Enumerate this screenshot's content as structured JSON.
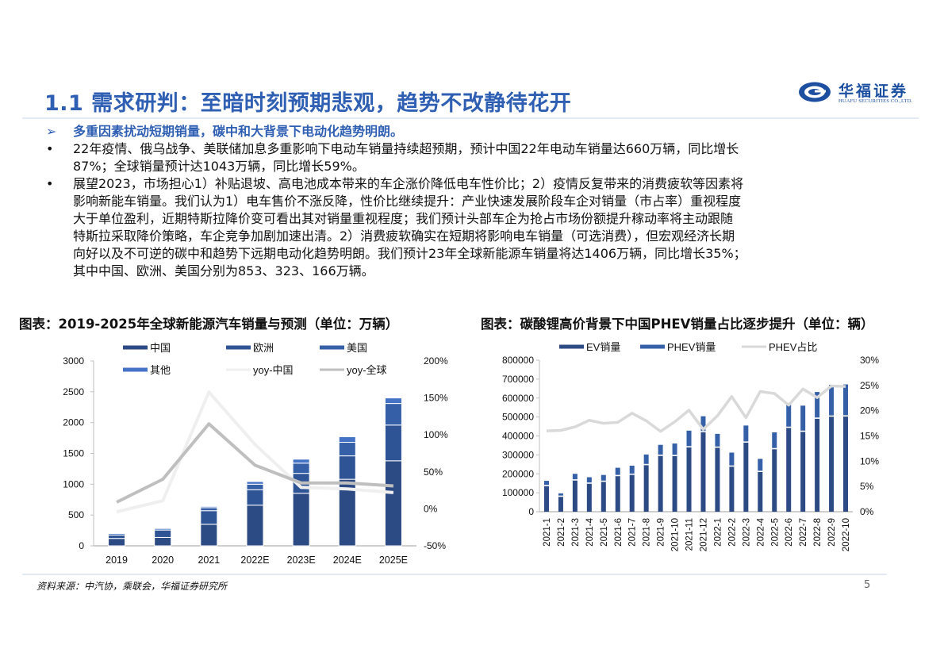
{
  "header": {
    "title": "1.1 需求研判：至暗时刻预期悲观，趋势不改静待花开",
    "logo": {
      "cn": "华福证券",
      "en": "HUAFU SECURITIES CO.,LTD.",
      "icon": "huafu-logo-icon"
    }
  },
  "summary": {
    "lead_marker": "➢",
    "lead": "多重因素扰动短期销量，碳中和大背景下电动化趋势明朗。",
    "bullet_marker": "•",
    "points": [
      {
        "lines": [
          "22年疫情、俄乌战争、美联储加息多重影响下电动车销量持续超预期，预计中国22年电动车销量达660万辆，同比增长",
          "87%；全球销量预计达1043万辆，同比增长59%。"
        ]
      },
      {
        "lines": [
          "展望2023，市场担心1）补贴退坡、高电池成本带来的车企涨价降低电车性价比；2）疫情反复带来的消费疲软等因素将",
          "影响新能车销量。我们认为1）电车售价不涨反降，性价比继续提升：产业快速发展阶段车企对销量（市占率）重视程度",
          "大于单位盈利，近期特斯拉降价变可看出其对销量重视程度；我们预计头部车企为抢占市场份额提升稼动率将主动跟随",
          "特斯拉采取降价策略，车企竞争加剧加速出清。2）消费疲软确实在短期将影响电车销量（可选消费），但宏观经济长期",
          "向好以及不可逆的碳中和趋势下远期电动化趋势明朗。我们预计23年全球新能源车销量将达1406万辆，同比增长35%；",
          "其中中国、欧洲、美国分别为853、323、166万辆。"
        ]
      }
    ]
  },
  "charts": {
    "left": {
      "title": "图表：2019-2025年全球新能源汽车销量与预测（单位：万辆）",
      "legend": [
        "中国",
        "欧洲",
        "美国",
        "其他",
        "yoy-中国",
        "yoy-全球"
      ],
      "y_ticks": [
        "3000",
        "2500",
        "2000",
        "1500",
        "1000",
        "500",
        "0"
      ],
      "y2_ticks": [
        "200%",
        "150%",
        "100%",
        "50%",
        "0%",
        "-50%"
      ],
      "x_labels": [
        "2019",
        "2020",
        "2021",
        "2022E",
        "2023E",
        "2024E",
        "2025E"
      ]
    },
    "right": {
      "title": "图表：碳酸锂高价背景下中国PHEV销量占比逐步提升（单位：辆）",
      "legend": [
        "EV销量",
        "PHEV销量",
        "PHEV占比"
      ],
      "y_ticks": [
        "800000",
        "700000",
        "600000",
        "500000",
        "400000",
        "300000",
        "200000",
        "100000",
        "0"
      ],
      "y2_ticks": [
        "30%",
        "25%",
        "20%",
        "15%",
        "10%",
        "5%",
        "0%"
      ],
      "x_labels": [
        "2021-1",
        "2021-2",
        "2021-3",
        "2021-4",
        "2021-5",
        "2021-6",
        "2021-7",
        "2021-8",
        "2021-9",
        "2021-10",
        "2021-11",
        "2021-12",
        "2022-1",
        "2022-2",
        "2022-3",
        "2022-4",
        "2022-5",
        "2022-6",
        "2022-7",
        "2022-8",
        "2022-9",
        "2022-10"
      ]
    }
  },
  "colors": {
    "title_blue": "#2f5fb3",
    "china": "#2c4a84",
    "europe": "#2f5496",
    "usa": "#3560a8",
    "other": "#4472c4",
    "ev": "#2c4a84",
    "phev": "#3560a8",
    "yoy_china": "#efefef",
    "yoy_global": "#bfbfbf",
    "phev_share": "#d9d9d9"
  },
  "chart_data": [
    {
      "type": "bar",
      "stacked": true,
      "title": "图表：2019-2025年全球新能源汽车销量与预测（单位：万辆）",
      "categories": [
        "2019",
        "2020",
        "2021",
        "2022E",
        "2023E",
        "2024E",
        "2025E"
      ],
      "series": [
        {
          "name": "中国",
          "type": "bar",
          "axis": "left",
          "values": [
            120,
            136,
            350,
            660,
            853,
            1080,
            1380
          ]
        },
        {
          "name": "欧洲",
          "type": "bar",
          "axis": "left",
          "values": [
            56,
            120,
            220,
            250,
            323,
            380,
            580
          ]
        },
        {
          "name": "美国",
          "type": "bar",
          "axis": "left",
          "values": [
            0,
            0,
            49,
            90,
            166,
            220,
            350
          ]
        },
        {
          "name": "其他",
          "type": "bar",
          "axis": "left",
          "values": [
            24,
            25,
            20,
            43,
            64,
            90,
            90
          ]
        },
        {
          "name": "yoy-中国",
          "type": "line",
          "axis": "right",
          "values": [
            -4,
            11,
            158,
            87,
            29,
            27,
            22
          ]
        },
        {
          "name": "yoy-全球",
          "type": "line",
          "axis": "right",
          "values": [
            9,
            40,
            115,
            59,
            35,
            35,
            31
          ]
        }
      ],
      "xlabel": "",
      "ylabel": "万辆",
      "ylim": [
        0,
        3000
      ],
      "y2lim": [
        -50,
        200
      ],
      "y2_unit": "%",
      "legend_position": "top",
      "grid": false
    },
    {
      "type": "bar",
      "stacked": true,
      "title": "图表：碳酸锂高价背景下中国PHEV销量占比逐步提升（单位：辆）",
      "categories": [
        "2021-1",
        "2021-2",
        "2021-3",
        "2021-4",
        "2021-5",
        "2021-6",
        "2021-7",
        "2021-8",
        "2021-9",
        "2021-10",
        "2021-11",
        "2021-12",
        "2022-1",
        "2022-2",
        "2022-3",
        "2022-4",
        "2022-5",
        "2022-6",
        "2022-7",
        "2022-8",
        "2022-9",
        "2022-10"
      ],
      "series": [
        {
          "name": "EV销量",
          "type": "bar",
          "axis": "left",
          "values": [
            137000,
            81000,
            167000,
            150000,
            160000,
            190000,
            197000,
            248000,
            297000,
            296000,
            342000,
            422000,
            340000,
            240000,
            367000,
            212000,
            332000,
            445000,
            424000,
            493000,
            504000,
            505000
          ]
        },
        {
          "name": "PHEV销量",
          "type": "bar",
          "axis": "left",
          "values": [
            26000,
            16000,
            33000,
            32000,
            34000,
            42000,
            46000,
            54000,
            56000,
            64000,
            86000,
            82000,
            71000,
            72000,
            88000,
            67000,
            87000,
            119000,
            136000,
            139000,
            166000,
            167000
          ]
        },
        {
          "name": "PHEV占比",
          "type": "line",
          "axis": "right",
          "values": [
            16.0,
            16.1,
            16.8,
            18.1,
            17.5,
            17.7,
            19.5,
            18.0,
            15.9,
            17.8,
            20.1,
            16.3,
            19.0,
            22.8,
            18.6,
            23.8,
            23.4,
            21.1,
            24.3,
            22.6,
            24.9,
            24.8
          ]
        }
      ],
      "xlabel": "",
      "ylabel": "辆",
      "ylim": [
        0,
        800000
      ],
      "y2lim": [
        0,
        30
      ],
      "y2_unit": "%",
      "legend_position": "top",
      "grid": false
    }
  ],
  "footer": {
    "source": "资料来源：中汽协，乘联会，华福证券研究所",
    "page": "5"
  }
}
